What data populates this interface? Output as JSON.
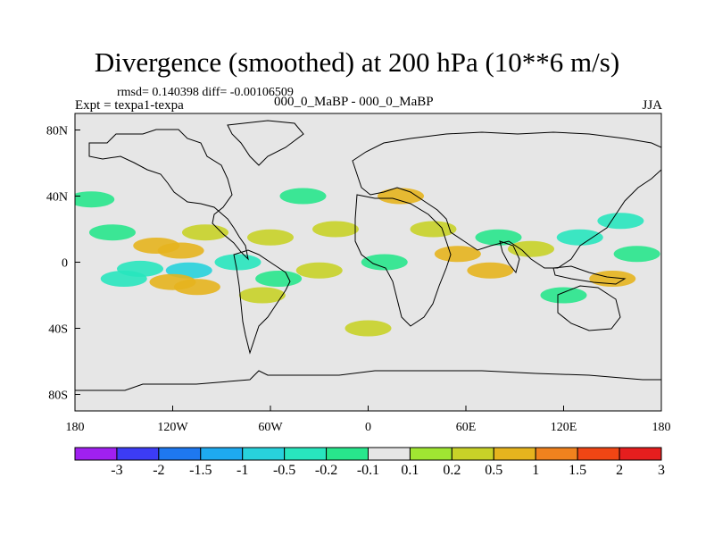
{
  "title": "Divergence (smoothed) at 200 hPa (10**6 m/s)",
  "stats_text": "rmsd= 0.140398 diff= -0.00106509",
  "expt_text": "Expt = texpa1-texpa",
  "center_text": "000_0_MaBP - 000_0_MaBP",
  "season": "JJA",
  "chart_data": {
    "type": "heatmap",
    "title": "Divergence (smoothed) at 200 hPa (10**6 m/s)",
    "x_ticks": [
      "180",
      "120W",
      "60W",
      "0",
      "60E",
      "120E",
      "180"
    ],
    "x_tick_values": [
      -180,
      -120,
      -60,
      0,
      60,
      120,
      180
    ],
    "y_ticks": [
      "80N",
      "40N",
      "0",
      "40S",
      "80S"
    ],
    "y_tick_values": [
      80,
      40,
      0,
      -40,
      -80
    ],
    "xlim": [
      -180,
      180
    ],
    "ylim": [
      -90,
      90
    ],
    "colorbar": {
      "labels": [
        "-3",
        "-2",
        "-1.5",
        "-1",
        "-0.5",
        "-0.2",
        "-0.1",
        "0.1",
        "0.2",
        "0.5",
        "1",
        "1.5",
        "2",
        "3"
      ],
      "colors": [
        "#a020f0",
        "#3c3cf5",
        "#1e78f0",
        "#1eaaf0",
        "#28d2dc",
        "#28e6be",
        "#28e68c",
        "#e6e6e6",
        "#a0e632",
        "#c8d228",
        "#e6b41e",
        "#f0821e",
        "#f04614",
        "#e61e1e"
      ]
    },
    "features": [
      {
        "lon": -170,
        "lat": 38,
        "value": -0.2
      },
      {
        "lon": -157,
        "lat": 18,
        "value": -0.2
      },
      {
        "lon": -130,
        "lat": 10,
        "value": 0.5
      },
      {
        "lon": -115,
        "lat": 7,
        "value": 0.5
      },
      {
        "lon": -100,
        "lat": 18,
        "value": 0.2
      },
      {
        "lon": -140,
        "lat": -4,
        "value": -0.5
      },
      {
        "lon": -110,
        "lat": -5,
        "value": -1
      },
      {
        "lon": -150,
        "lat": -10,
        "value": -0.5
      },
      {
        "lon": -120,
        "lat": -12,
        "value": 0.5
      },
      {
        "lon": -105,
        "lat": -15,
        "value": 0.5
      },
      {
        "lon": -80,
        "lat": 0,
        "value": -0.5
      },
      {
        "lon": -60,
        "lat": 15,
        "value": 0.2
      },
      {
        "lon": -55,
        "lat": -10,
        "value": -0.2
      },
      {
        "lon": -65,
        "lat": -20,
        "value": 0.2
      },
      {
        "lon": -40,
        "lat": 40,
        "value": -0.2
      },
      {
        "lon": -20,
        "lat": 20,
        "value": 0.2
      },
      {
        "lon": -30,
        "lat": -5,
        "value": 0.2
      },
      {
        "lon": 10,
        "lat": 0,
        "value": -0.2
      },
      {
        "lon": 20,
        "lat": 40,
        "value": 0.5
      },
      {
        "lon": 40,
        "lat": 20,
        "value": 0.2
      },
      {
        "lon": 55,
        "lat": 5,
        "value": 0.5
      },
      {
        "lon": 75,
        "lat": -5,
        "value": 0.5
      },
      {
        "lon": 80,
        "lat": 15,
        "value": -0.2
      },
      {
        "lon": 100,
        "lat": 8,
        "value": 0.2
      },
      {
        "lon": 130,
        "lat": 15,
        "value": -0.5
      },
      {
        "lon": 155,
        "lat": 25,
        "value": -0.5
      },
      {
        "lon": 165,
        "lat": 5,
        "value": -0.2
      },
      {
        "lon": 150,
        "lat": -10,
        "value": 0.5
      },
      {
        "lon": 120,
        "lat": -20,
        "value": -0.2
      },
      {
        "lon": 0,
        "lat": -40,
        "value": 0.2
      }
    ]
  }
}
